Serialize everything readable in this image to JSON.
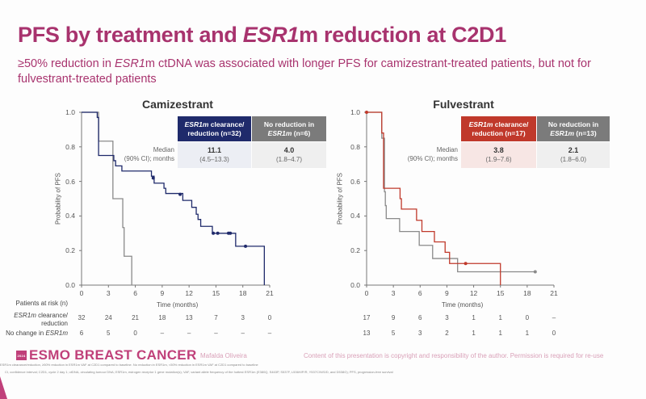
{
  "slide": {
    "title_parts": [
      "PFS by treatment and ",
      "ESR1",
      "m reduction at C2D1"
    ],
    "subtitle_parts": [
      "≥50% reduction in ",
      "ESR1",
      "m ctDNA was associated with longer PFS for camizestrant-treated patients, but not for fulvestrant-treated patients"
    ]
  },
  "risk_table": {
    "title": "Patients at risk (n)",
    "row1_italic": "ESR1m",
    "row1_rest": " clearance/",
    "row1_line2": "reduction",
    "row2_text": "No change in ",
    "row2_italic": "ESR1m"
  },
  "footer": {
    "logo_text": "ESMO BREAST CANCER",
    "logo_badge": "2024",
    "presenter": "Mafalda Oliveira",
    "copyright": "Content of this presentation is copyright and responsibility of the author. Permission is required for re-use",
    "footnote1": "ESR1m clearance/reduction, ≥50% reduction in ESR1m VAF at C2D1 compared to baseline. No reduction in ESR1m, <50% reduction in ESR1m VAF at C2D1 compared to baseline",
    "footnote2": "CI, confidence interval; C2D1, cycle 2 day 1; ctDNA, circulating tumour DNA; ESR1m, estrogen receptor 1 gene mutation(s); VAF, variant allele frequency of the hottest ESR1m (E380Q, S463P, S537F, L536H/P/R, Y537C/N/S/D, and D538G); PFS, progression-free survival"
  },
  "colors": {
    "title": "#a8336e",
    "camizestrant_clearance": "#1f2a6b",
    "fulvestrant_clearance": "#c0392b",
    "no_reduction": "#8a8a8a",
    "no_reduction_header": "#7b7b7b"
  },
  "chart_data": [
    {
      "type": "line",
      "subtype": "kaplan-meier",
      "title": "Camizestrant",
      "xlabel": "Time (months)",
      "ylabel": "Probability of PFS",
      "xlim": [
        0,
        21
      ],
      "ylim": [
        0,
        1
      ],
      "xticks": [
        "0",
        "3",
        "6",
        "9",
        "12",
        "15",
        "18",
        "21"
      ],
      "yticks": [
        "0.0",
        "0.2",
        "0.4",
        "0.6",
        "0.8",
        "1.0"
      ],
      "grid": false,
      "median_label": "Median",
      "median_label2": "(90% CI); months",
      "series": [
        {
          "name_italic": "ESR1m",
          "name_rest": " clearance/",
          "name_line2": "reduction (n=32)",
          "median": "11.1",
          "ci": "(4.5–13.3)",
          "steps": [
            [
              0,
              1
            ],
            [
              1.75,
              0.97
            ],
            [
              1.9,
              0.75
            ],
            [
              3.6,
              0.72
            ],
            [
              3.8,
              0.69
            ],
            [
              4.5,
              0.66
            ],
            [
              7.8,
              0.63
            ],
            [
              8.1,
              0.59
            ],
            [
              9.2,
              0.56
            ],
            [
              9.4,
              0.53
            ],
            [
              11.3,
              0.49
            ],
            [
              12.3,
              0.45
            ],
            [
              12.8,
              0.41
            ],
            [
              13.0,
              0.38
            ],
            [
              13.3,
              0.34
            ],
            [
              14.6,
              0.3
            ],
            [
              17.2,
              0.225
            ],
            [
              20.4,
              0
            ]
          ],
          "censored": [
            [
              8.0,
              0.62
            ],
            [
              11.0,
              0.525
            ],
            [
              14.7,
              0.3
            ],
            [
              15.2,
              0.3
            ],
            [
              16.4,
              0.3
            ],
            [
              16.6,
              0.3
            ],
            [
              18.3,
              0.225
            ]
          ],
          "at_risk": [
            "32",
            "24",
            "21",
            "18",
            "13",
            "7",
            "3",
            "0"
          ]
        },
        {
          "name_line1": "No reduction in",
          "name_italic": "ESR1m",
          "name_rest": " (n=6)",
          "median": "4.0",
          "ci": "(1.8–4.7)",
          "steps": [
            [
              0,
              1
            ],
            [
              1.9,
              0.833
            ],
            [
              3.5,
              0.5
            ],
            [
              4.6,
              0.333
            ],
            [
              4.75,
              0.167
            ],
            [
              5.6,
              0
            ]
          ],
          "censored": [],
          "at_risk": [
            "6",
            "5",
            "0",
            "–",
            "–",
            "–",
            "–",
            "–"
          ]
        }
      ]
    },
    {
      "type": "line",
      "subtype": "kaplan-meier",
      "title": "Fulvestrant",
      "xlabel": "Time (months)",
      "ylabel": "Probability of PFS",
      "xlim": [
        0,
        21
      ],
      "ylim": [
        0,
        1
      ],
      "xticks": [
        "0",
        "3",
        "6",
        "9",
        "12",
        "15",
        "18",
        "21"
      ],
      "yticks": [
        "0.0",
        "0.2",
        "0.4",
        "0.6",
        "0.8",
        "1.0"
      ],
      "grid": false,
      "median_label": "Median",
      "median_label2": "(90% CI); months",
      "series": [
        {
          "name_italic": "ESR1m",
          "name_rest": " clearance/",
          "name_line2": "reduction (n=17)",
          "median": "3.8",
          "ci": "(1.9–7.6)",
          "steps": [
            [
              0,
              1
            ],
            [
              1.7,
              0.88
            ],
            [
              1.9,
              0.56
            ],
            [
              3.75,
              0.5
            ],
            [
              3.9,
              0.44
            ],
            [
              5.6,
              0.375
            ],
            [
              6.2,
              0.31
            ],
            [
              7.6,
              0.25
            ],
            [
              8.8,
              0.19
            ],
            [
              9.3,
              0.125
            ],
            [
              15.0,
              0
            ]
          ],
          "censored": [
            [
              0,
              1
            ],
            [
              11.1,
              0.125
            ]
          ],
          "at_risk": [
            "17",
            "9",
            "6",
            "3",
            "1",
            "1",
            "0",
            "–"
          ]
        },
        {
          "name_line1": "No reduction in",
          "name_italic": "ESR1m",
          "name_rest": " (n=13)",
          "median": "2.1",
          "ci": "(1.8–6.0)",
          "steps": [
            [
              0,
              1
            ],
            [
              1.7,
              0.85
            ],
            [
              2.0,
              0.54
            ],
            [
              2.1,
              0.46
            ],
            [
              2.2,
              0.385
            ],
            [
              3.7,
              0.31
            ],
            [
              5.9,
              0.23
            ],
            [
              7.4,
              0.154
            ],
            [
              10.2,
              0.077
            ]
          ],
          "end": 18.9,
          "censored": [
            [
              18.9,
              0.077
            ]
          ],
          "at_risk": [
            "13",
            "5",
            "3",
            "2",
            "1",
            "1",
            "1",
            "0"
          ]
        }
      ]
    }
  ]
}
